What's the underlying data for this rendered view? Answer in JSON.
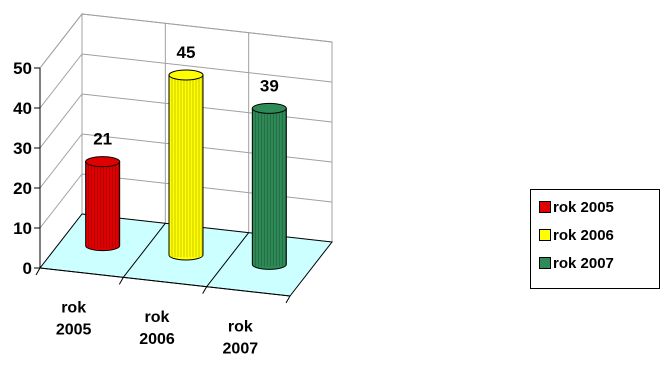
{
  "chart_data": {
    "type": "bar",
    "style": "3d-cylinder",
    "categories": [
      "rok 2005",
      "rok 2006",
      "rok 2007"
    ],
    "category_tick_lines": [
      [
        "rok",
        "2005"
      ],
      [
        "rok",
        "2006"
      ],
      [
        "rok",
        "2007"
      ]
    ],
    "values": [
      21,
      45,
      39
    ],
    "data_labels": [
      "21",
      "45",
      "39"
    ],
    "colors": [
      "#e00000",
      "#ffff00",
      "#2e8b57"
    ],
    "floor_color": "#ccffff",
    "yticks": [
      "0",
      "10",
      "20",
      "30",
      "40",
      "50"
    ],
    "ylim": [
      0,
      50
    ],
    "grid": true,
    "legend_position": "right",
    "legend": [
      {
        "label": "rok 2005",
        "color": "#e00000"
      },
      {
        "label": "rok 2006",
        "color": "#ffff00"
      },
      {
        "label": "rok 2007",
        "color": "#2e8b57"
      }
    ]
  }
}
